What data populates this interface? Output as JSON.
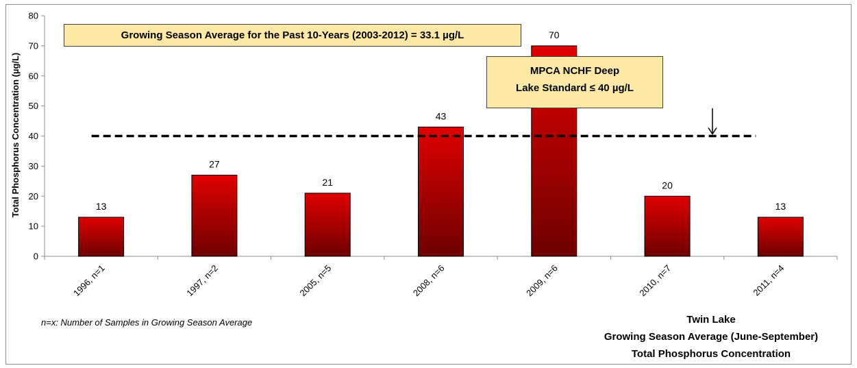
{
  "chart_data": {
    "type": "bar",
    "categories": [
      "1996, n=1",
      "1997, n=2",
      "2005, n=5",
      "2008, n=6",
      "2009, n=6",
      "2010, n=7",
      "2011, n=4"
    ],
    "values": [
      13,
      27,
      21,
      43,
      70,
      20,
      13
    ],
    "data_labels": [
      "13",
      "27",
      "21",
      "43",
      "70",
      "20",
      "13"
    ],
    "ylabel": "Total Phosphorus Concentration (µg/L)",
    "ylim": [
      0,
      80
    ],
    "yticks": [
      "0",
      "10",
      "20",
      "30",
      "40",
      "50",
      "60",
      "70",
      "80"
    ],
    "grid": false,
    "bar_color_top": "#e00000",
    "bar_color_bottom": "#6e0000",
    "reference_line": {
      "value": 40,
      "style": "dashed",
      "color": "#000000"
    }
  },
  "annotations": {
    "average": "Growing Season Average for the Past 10-Years (2003-2012) = 33.1 µg/L",
    "standard_line1": "MPCA NCHF Deep",
    "standard_line2": "Lake Standard ≤ 40 µg/L",
    "note": "n=x: Number of Samples in Growing Season Average",
    "callout_color": "#fde9a6"
  },
  "caption": {
    "line1": "Twin Lake",
    "line2": "Growing Season Average (June-September)",
    "line3": "Total Phosphorus Concentration"
  }
}
